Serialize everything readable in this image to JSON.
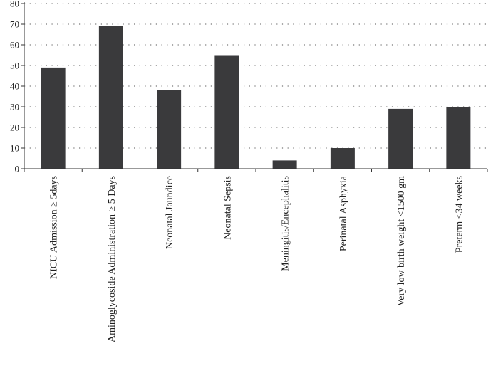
{
  "chart_data": {
    "type": "bar",
    "title": "",
    "xlabel": "",
    "ylabel": "",
    "categories": [
      "NICU Admission ≥ 5days",
      "Aminoglycoside Administration ≥ 5 Days",
      "Neonatal Jaundice",
      "Neonatal Sepsis",
      "Meningitis/Encephalitis",
      "Perinatal Asphyxia",
      "Very low birth weight <1500 gm",
      "Preterm <34 weeks"
    ],
    "values": [
      49,
      69,
      38,
      55,
      4,
      10,
      29,
      30
    ],
    "ylim": [
      0,
      80
    ],
    "yticks": [
      0,
      10,
      20,
      30,
      40,
      50,
      60,
      70,
      80
    ],
    "grid": "horizontal dotted",
    "bar_color": "#3a3a3c",
    "axis_color": "#333333",
    "grid_color": "#555555"
  }
}
